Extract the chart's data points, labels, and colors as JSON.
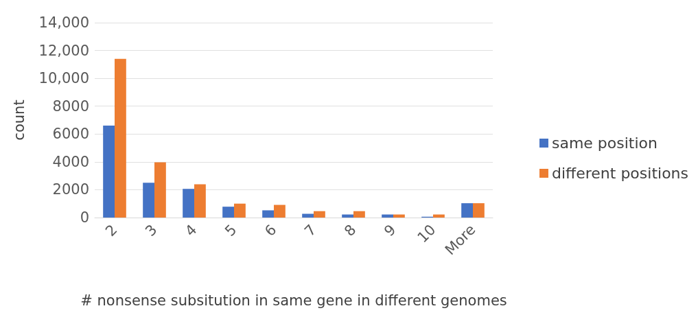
{
  "chart_data": {
    "type": "bar",
    "xlabel": "# nonsense subsitution in same gene in different genomes",
    "ylabel": "count",
    "categories": [
      "2",
      "3",
      "4",
      "5",
      "6",
      "7",
      "8",
      "9",
      "10",
      "More"
    ],
    "series": [
      {
        "name": "same position",
        "color": "#4472c4",
        "values": [
          6600,
          2500,
          2060,
          780,
          520,
          270,
          220,
          220,
          60,
          1030
        ]
      },
      {
        "name": "different positions",
        "color": "#ed7d31",
        "values": [
          11400,
          3970,
          2390,
          1000,
          910,
          460,
          460,
          220,
          220,
          1030
        ]
      }
    ],
    "ylim": [
      0,
      14000
    ],
    "yticks": [
      0,
      2000,
      4000,
      6000,
      8000,
      {
        "value": 10000,
        "label": "10,000"
      },
      {
        "value": 12000,
        "label": "12,000"
      },
      {
        "value": 14000,
        "label": "14,000"
      }
    ],
    "grid": "y",
    "legend": "right"
  }
}
